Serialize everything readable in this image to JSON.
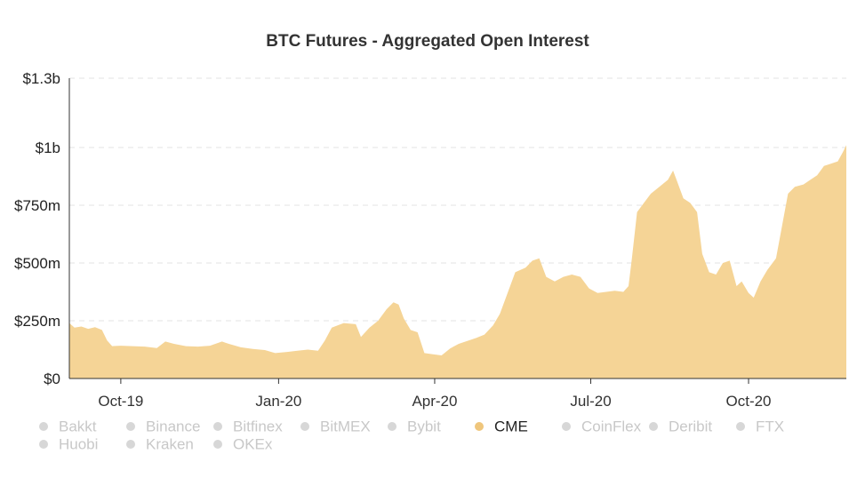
{
  "chart_data": {
    "type": "area",
    "title": "BTC Futures - Aggregated Open Interest",
    "xlabel": "",
    "ylabel": "",
    "x_range": [
      "2019-09-01",
      "2020-11-27"
    ],
    "ylim": [
      0,
      1300
    ],
    "y_unit": "USD millions",
    "grid": true,
    "legend_placement": "bottom",
    "x_ticks": [
      {
        "label": "Oct-19",
        "x": "2019-10-01"
      },
      {
        "label": "Jan-20",
        "x": "2020-01-01"
      },
      {
        "label": "Apr-20",
        "x": "2020-04-01"
      },
      {
        "label": "Jul-20",
        "x": "2020-07-01"
      },
      {
        "label": "Oct-20",
        "x": "2020-10-01"
      }
    ],
    "y_ticks": [
      {
        "label": "$0",
        "value": 0
      },
      {
        "label": "$250m",
        "value": 250
      },
      {
        "label": "$500m",
        "value": 500
      },
      {
        "label": "$750m",
        "value": 750
      },
      {
        "label": "$1b",
        "value": 1000
      },
      {
        "label": "$1.3b",
        "value": 1300
      }
    ],
    "series": [
      {
        "name": "CME",
        "color": "#f5d496",
        "visible": true,
        "points": [
          [
            "2019-09-01",
            240
          ],
          [
            "2019-09-04",
            220
          ],
          [
            "2019-09-08",
            225
          ],
          [
            "2019-09-12",
            215
          ],
          [
            "2019-09-16",
            222
          ],
          [
            "2019-09-20",
            210
          ],
          [
            "2019-09-23",
            165
          ],
          [
            "2019-09-26",
            140
          ],
          [
            "2019-10-01",
            142
          ],
          [
            "2019-10-08",
            140
          ],
          [
            "2019-10-15",
            138
          ],
          [
            "2019-10-22",
            132
          ],
          [
            "2019-10-27",
            160
          ],
          [
            "2019-11-01",
            150
          ],
          [
            "2019-11-08",
            140
          ],
          [
            "2019-11-15",
            138
          ],
          [
            "2019-11-22",
            142
          ],
          [
            "2019-11-29",
            160
          ],
          [
            "2019-12-03",
            150
          ],
          [
            "2019-12-10",
            135
          ],
          [
            "2019-12-17",
            128
          ],
          [
            "2019-12-24",
            123
          ],
          [
            "2019-12-30",
            110
          ],
          [
            "2020-01-06",
            115
          ],
          [
            "2020-01-12",
            120
          ],
          [
            "2020-01-18",
            125
          ],
          [
            "2020-01-24",
            120
          ],
          [
            "2020-01-28",
            165
          ],
          [
            "2020-02-01",
            220
          ],
          [
            "2020-02-08",
            240
          ],
          [
            "2020-02-15",
            235
          ],
          [
            "2020-02-18",
            180
          ],
          [
            "2020-02-23",
            220
          ],
          [
            "2020-02-28",
            250
          ],
          [
            "2020-03-04",
            300
          ],
          [
            "2020-03-08",
            330
          ],
          [
            "2020-03-11",
            320
          ],
          [
            "2020-03-14",
            260
          ],
          [
            "2020-03-18",
            210
          ],
          [
            "2020-03-22",
            200
          ],
          [
            "2020-03-26",
            110
          ],
          [
            "2020-03-31",
            105
          ],
          [
            "2020-04-05",
            100
          ],
          [
            "2020-04-10",
            130
          ],
          [
            "2020-04-15",
            150
          ],
          [
            "2020-04-21",
            165
          ],
          [
            "2020-04-25",
            175
          ],
          [
            "2020-04-30",
            190
          ],
          [
            "2020-05-05",
            230
          ],
          [
            "2020-05-09",
            280
          ],
          [
            "2020-05-13",
            360
          ],
          [
            "2020-05-18",
            460
          ],
          [
            "2020-05-24",
            480
          ],
          [
            "2020-05-28",
            510
          ],
          [
            "2020-06-01",
            520
          ],
          [
            "2020-06-05",
            440
          ],
          [
            "2020-06-10",
            420
          ],
          [
            "2020-06-15",
            440
          ],
          [
            "2020-06-20",
            450
          ],
          [
            "2020-06-25",
            440
          ],
          [
            "2020-06-30",
            390
          ],
          [
            "2020-07-05",
            370
          ],
          [
            "2020-07-10",
            375
          ],
          [
            "2020-07-15",
            380
          ],
          [
            "2020-07-20",
            375
          ],
          [
            "2020-07-23",
            400
          ],
          [
            "2020-07-25",
            520
          ],
          [
            "2020-07-28",
            720
          ],
          [
            "2020-08-01",
            760
          ],
          [
            "2020-08-05",
            800
          ],
          [
            "2020-08-10",
            830
          ],
          [
            "2020-08-15",
            860
          ],
          [
            "2020-08-18",
            900
          ],
          [
            "2020-08-20",
            860
          ],
          [
            "2020-08-24",
            780
          ],
          [
            "2020-08-28",
            760
          ],
          [
            "2020-09-01",
            720
          ],
          [
            "2020-09-04",
            540
          ],
          [
            "2020-09-08",
            460
          ],
          [
            "2020-09-12",
            450
          ],
          [
            "2020-09-16",
            500
          ],
          [
            "2020-09-20",
            510
          ],
          [
            "2020-09-24",
            400
          ],
          [
            "2020-09-27",
            420
          ],
          [
            "2020-10-01",
            370
          ],
          [
            "2020-10-04",
            350
          ],
          [
            "2020-10-08",
            420
          ],
          [
            "2020-10-12",
            470
          ],
          [
            "2020-10-17",
            520
          ],
          [
            "2020-10-20",
            640
          ],
          [
            "2020-10-24",
            800
          ],
          [
            "2020-10-28",
            830
          ],
          [
            "2020-11-02",
            840
          ],
          [
            "2020-11-06",
            860
          ],
          [
            "2020-11-10",
            880
          ],
          [
            "2020-11-14",
            920
          ],
          [
            "2020-11-18",
            930
          ],
          [
            "2020-11-22",
            940
          ],
          [
            "2020-11-25",
            980
          ],
          [
            "2020-11-27",
            1010
          ]
        ]
      }
    ]
  },
  "legend": {
    "items": [
      {
        "label": "Bakkt",
        "active": false
      },
      {
        "label": "Binance",
        "active": false
      },
      {
        "label": "Bitfinex",
        "active": false
      },
      {
        "label": "BitMEX",
        "active": false
      },
      {
        "label": "Bybit",
        "active": false
      },
      {
        "label": "CME",
        "active": true
      },
      {
        "label": "CoinFlex",
        "active": false
      },
      {
        "label": "Deribit",
        "active": false
      },
      {
        "label": "FTX",
        "active": false
      },
      {
        "label": "Huobi",
        "active": false
      },
      {
        "label": "Kraken",
        "active": false
      },
      {
        "label": "OKEx",
        "active": false
      }
    ]
  },
  "colors": {
    "area": "#f5d496",
    "active_dot": "#efc67c",
    "inactive_dot": "#d7d7d7",
    "active_text": "#222222",
    "inactive_text": "#c8c8c8",
    "grid": "#e3e3e3",
    "axis": "#333333"
  }
}
